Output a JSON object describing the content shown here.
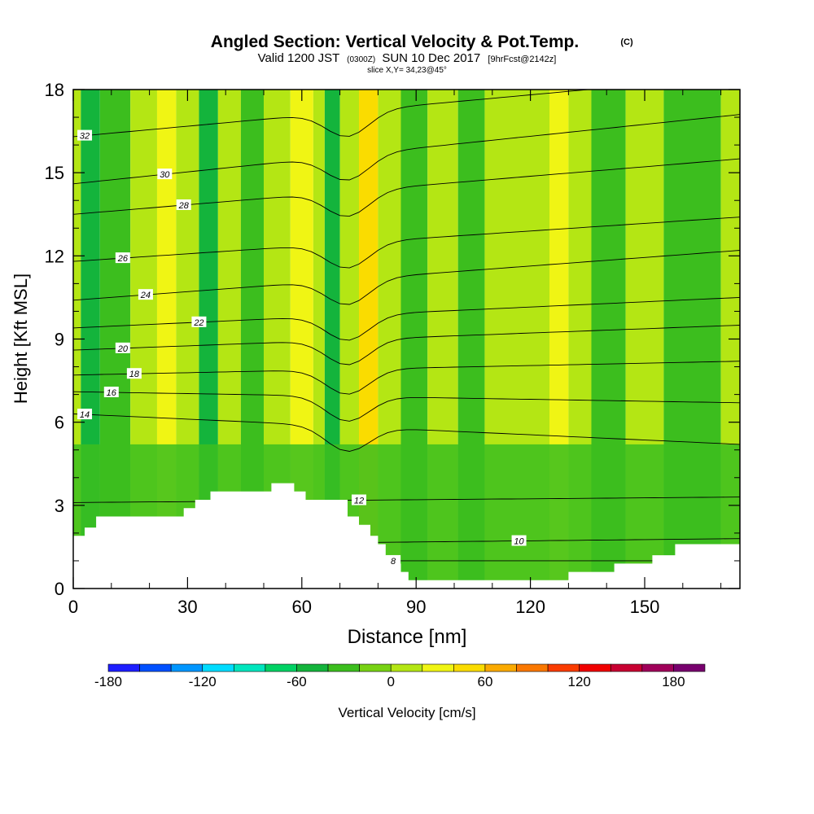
{
  "title": "Angled Section: Vertical Velocity & Pot.Temp.",
  "title_unit": "(C)",
  "valid_line": {
    "prefix": "Valid 1200 JST",
    "utc": "(0300Z)",
    "date": "SUN 10 Dec 2017",
    "forecast": "[9hrFcst@2142z]"
  },
  "slice_text": "slice X,Y= 34,23@45°",
  "colors": {
    "background": "#ffffff",
    "frame": "#000000",
    "contour": "#000000",
    "terrain": "#ffffff"
  },
  "chart_data": {
    "type": "heatmap",
    "xlabel": "Distance [nm]",
    "ylabel": "Height [Kft MSL]",
    "xlim": [
      0,
      175
    ],
    "ylim": [
      0,
      18
    ],
    "x_ticks": [
      0,
      30,
      60,
      90,
      120,
      150
    ],
    "y_ticks": [
      0,
      3,
      6,
      9,
      12,
      15,
      18
    ],
    "grid": false,
    "colorbar": {
      "label": "Vertical Velocity [cm/s]",
      "range": [
        -180,
        200
      ],
      "tick_values": [
        -180,
        -120,
        -60,
        0,
        60,
        120,
        180
      ],
      "colors": [
        "#1e1eff",
        "#0050ff",
        "#0096ff",
        "#00dcff",
        "#00e6be",
        "#00d264",
        "#14b43c",
        "#3cbe1e",
        "#78d214",
        "#b4e614",
        "#f0f514",
        "#fadc00",
        "#faaa00",
        "#fa7800",
        "#fa3c00",
        "#f00000",
        "#c80032",
        "#a0005a",
        "#78006e"
      ]
    },
    "field_bands": [
      {
        "x": [
          0,
          2
        ],
        "value": 0
      },
      {
        "x": [
          2,
          7
        ],
        "value": -60
      },
      {
        "x": [
          7,
          15
        ],
        "value": -30
      },
      {
        "x": [
          15,
          22
        ],
        "value": 0
      },
      {
        "x": [
          22,
          27
        ],
        "value": 30
      },
      {
        "x": [
          27,
          33
        ],
        "value": 0
      },
      {
        "x": [
          33,
          38
        ],
        "value": -60
      },
      {
        "x": [
          38,
          44
        ],
        "value": 0
      },
      {
        "x": [
          44,
          50
        ],
        "value": -30
      },
      {
        "x": [
          50,
          57
        ],
        "value": 0
      },
      {
        "x": [
          57,
          63
        ],
        "value": 30
      },
      {
        "x": [
          63,
          66
        ],
        "value": 0
      },
      {
        "x": [
          66,
          70
        ],
        "value": -60
      },
      {
        "x": [
          70,
          75
        ],
        "value": 0
      },
      {
        "x": [
          75,
          80
        ],
        "value": 45
      },
      {
        "x": [
          80,
          86
        ],
        "value": 0
      },
      {
        "x": [
          86,
          93
        ],
        "value": -30
      },
      {
        "x": [
          93,
          101
        ],
        "value": 0
      },
      {
        "x": [
          101,
          108
        ],
        "value": -30
      },
      {
        "x": [
          108,
          125
        ],
        "value": 0
      },
      {
        "x": [
          125,
          130
        ],
        "value": 30
      },
      {
        "x": [
          130,
          136
        ],
        "value": 0
      },
      {
        "x": [
          136,
          145
        ],
        "value": -30
      },
      {
        "x": [
          145,
          155
        ],
        "value": 0
      },
      {
        "x": [
          155,
          170
        ],
        "value": -30
      },
      {
        "x": [
          170,
          175
        ],
        "value": 0
      }
    ],
    "low_level_field_top": 5.2,
    "low_level_value": -30,
    "terrain": [
      [
        0,
        1.9
      ],
      [
        3,
        1.9
      ],
      [
        3,
        2.2
      ],
      [
        6,
        2.2
      ],
      [
        6,
        2.6
      ],
      [
        29,
        2.6
      ],
      [
        29,
        2.9
      ],
      [
        32,
        2.9
      ],
      [
        32,
        3.2
      ],
      [
        36,
        3.2
      ],
      [
        36,
        3.5
      ],
      [
        52,
        3.5
      ],
      [
        52,
        3.8
      ],
      [
        58,
        3.8
      ],
      [
        58,
        3.5
      ],
      [
        61,
        3.5
      ],
      [
        61,
        3.2
      ],
      [
        72,
        3.2
      ],
      [
        72,
        2.6
      ],
      [
        75,
        2.6
      ],
      [
        75,
        2.3
      ],
      [
        78,
        2.3
      ],
      [
        78,
        1.9
      ],
      [
        80,
        1.9
      ],
      [
        80,
        1.6
      ],
      [
        82,
        1.6
      ],
      [
        82,
        1.2
      ],
      [
        84,
        1.2
      ],
      [
        84,
        0.9
      ],
      [
        86,
        0.9
      ],
      [
        86,
        0.6
      ],
      [
        88,
        0.6
      ],
      [
        88,
        0.3
      ],
      [
        130,
        0.3
      ],
      [
        130,
        0.6
      ],
      [
        142,
        0.6
      ],
      [
        142,
        0.9
      ],
      [
        152,
        0.9
      ],
      [
        152,
        1.2
      ],
      [
        158,
        1.2
      ],
      [
        158,
        1.6
      ],
      [
        175,
        1.6
      ]
    ],
    "contours": [
      {
        "theta": 8,
        "left": 1.0,
        "right": 1.0,
        "label": "8",
        "label_x": 84
      },
      {
        "theta": 10,
        "left": 1.55,
        "right": 1.8,
        "label": "10",
        "label_x": 117
      },
      {
        "theta": 12,
        "left": 3.1,
        "right": 3.3,
        "label": "12",
        "label_x": 75
      },
      {
        "theta": 14,
        "left": 6.3,
        "right": 5.2,
        "label": "14",
        "label_x": 3
      },
      {
        "theta": 16,
        "left": 7.1,
        "right": 6.7,
        "label": "16",
        "label_x": 10
      },
      {
        "theta": 18,
        "left": 7.7,
        "right": 8.2,
        "label": "18",
        "label_x": 16
      },
      {
        "theta": 20,
        "left": 8.6,
        "right": 9.5,
        "label": "20",
        "label_x": 13
      },
      {
        "theta": 22,
        "left": 9.4,
        "right": 10.5,
        "label": "22",
        "label_x": 33
      },
      {
        "theta": 24,
        "left": 10.4,
        "right": 12.2,
        "label": "24",
        "label_x": 19
      },
      {
        "theta": 26,
        "left": 11.8,
        "right": 13.4,
        "label": "26",
        "label_x": 13
      },
      {
        "theta": 28,
        "left": 13.5,
        "right": 15.5,
        "label": "28",
        "label_x": 29
      },
      {
        "theta": 30,
        "left": 14.6,
        "right": 17.1,
        "label": "30",
        "label_x": 24
      },
      {
        "theta": 32,
        "left": 16.3,
        "right": 18.5,
        "label": "32",
        "label_x": 3
      }
    ]
  }
}
